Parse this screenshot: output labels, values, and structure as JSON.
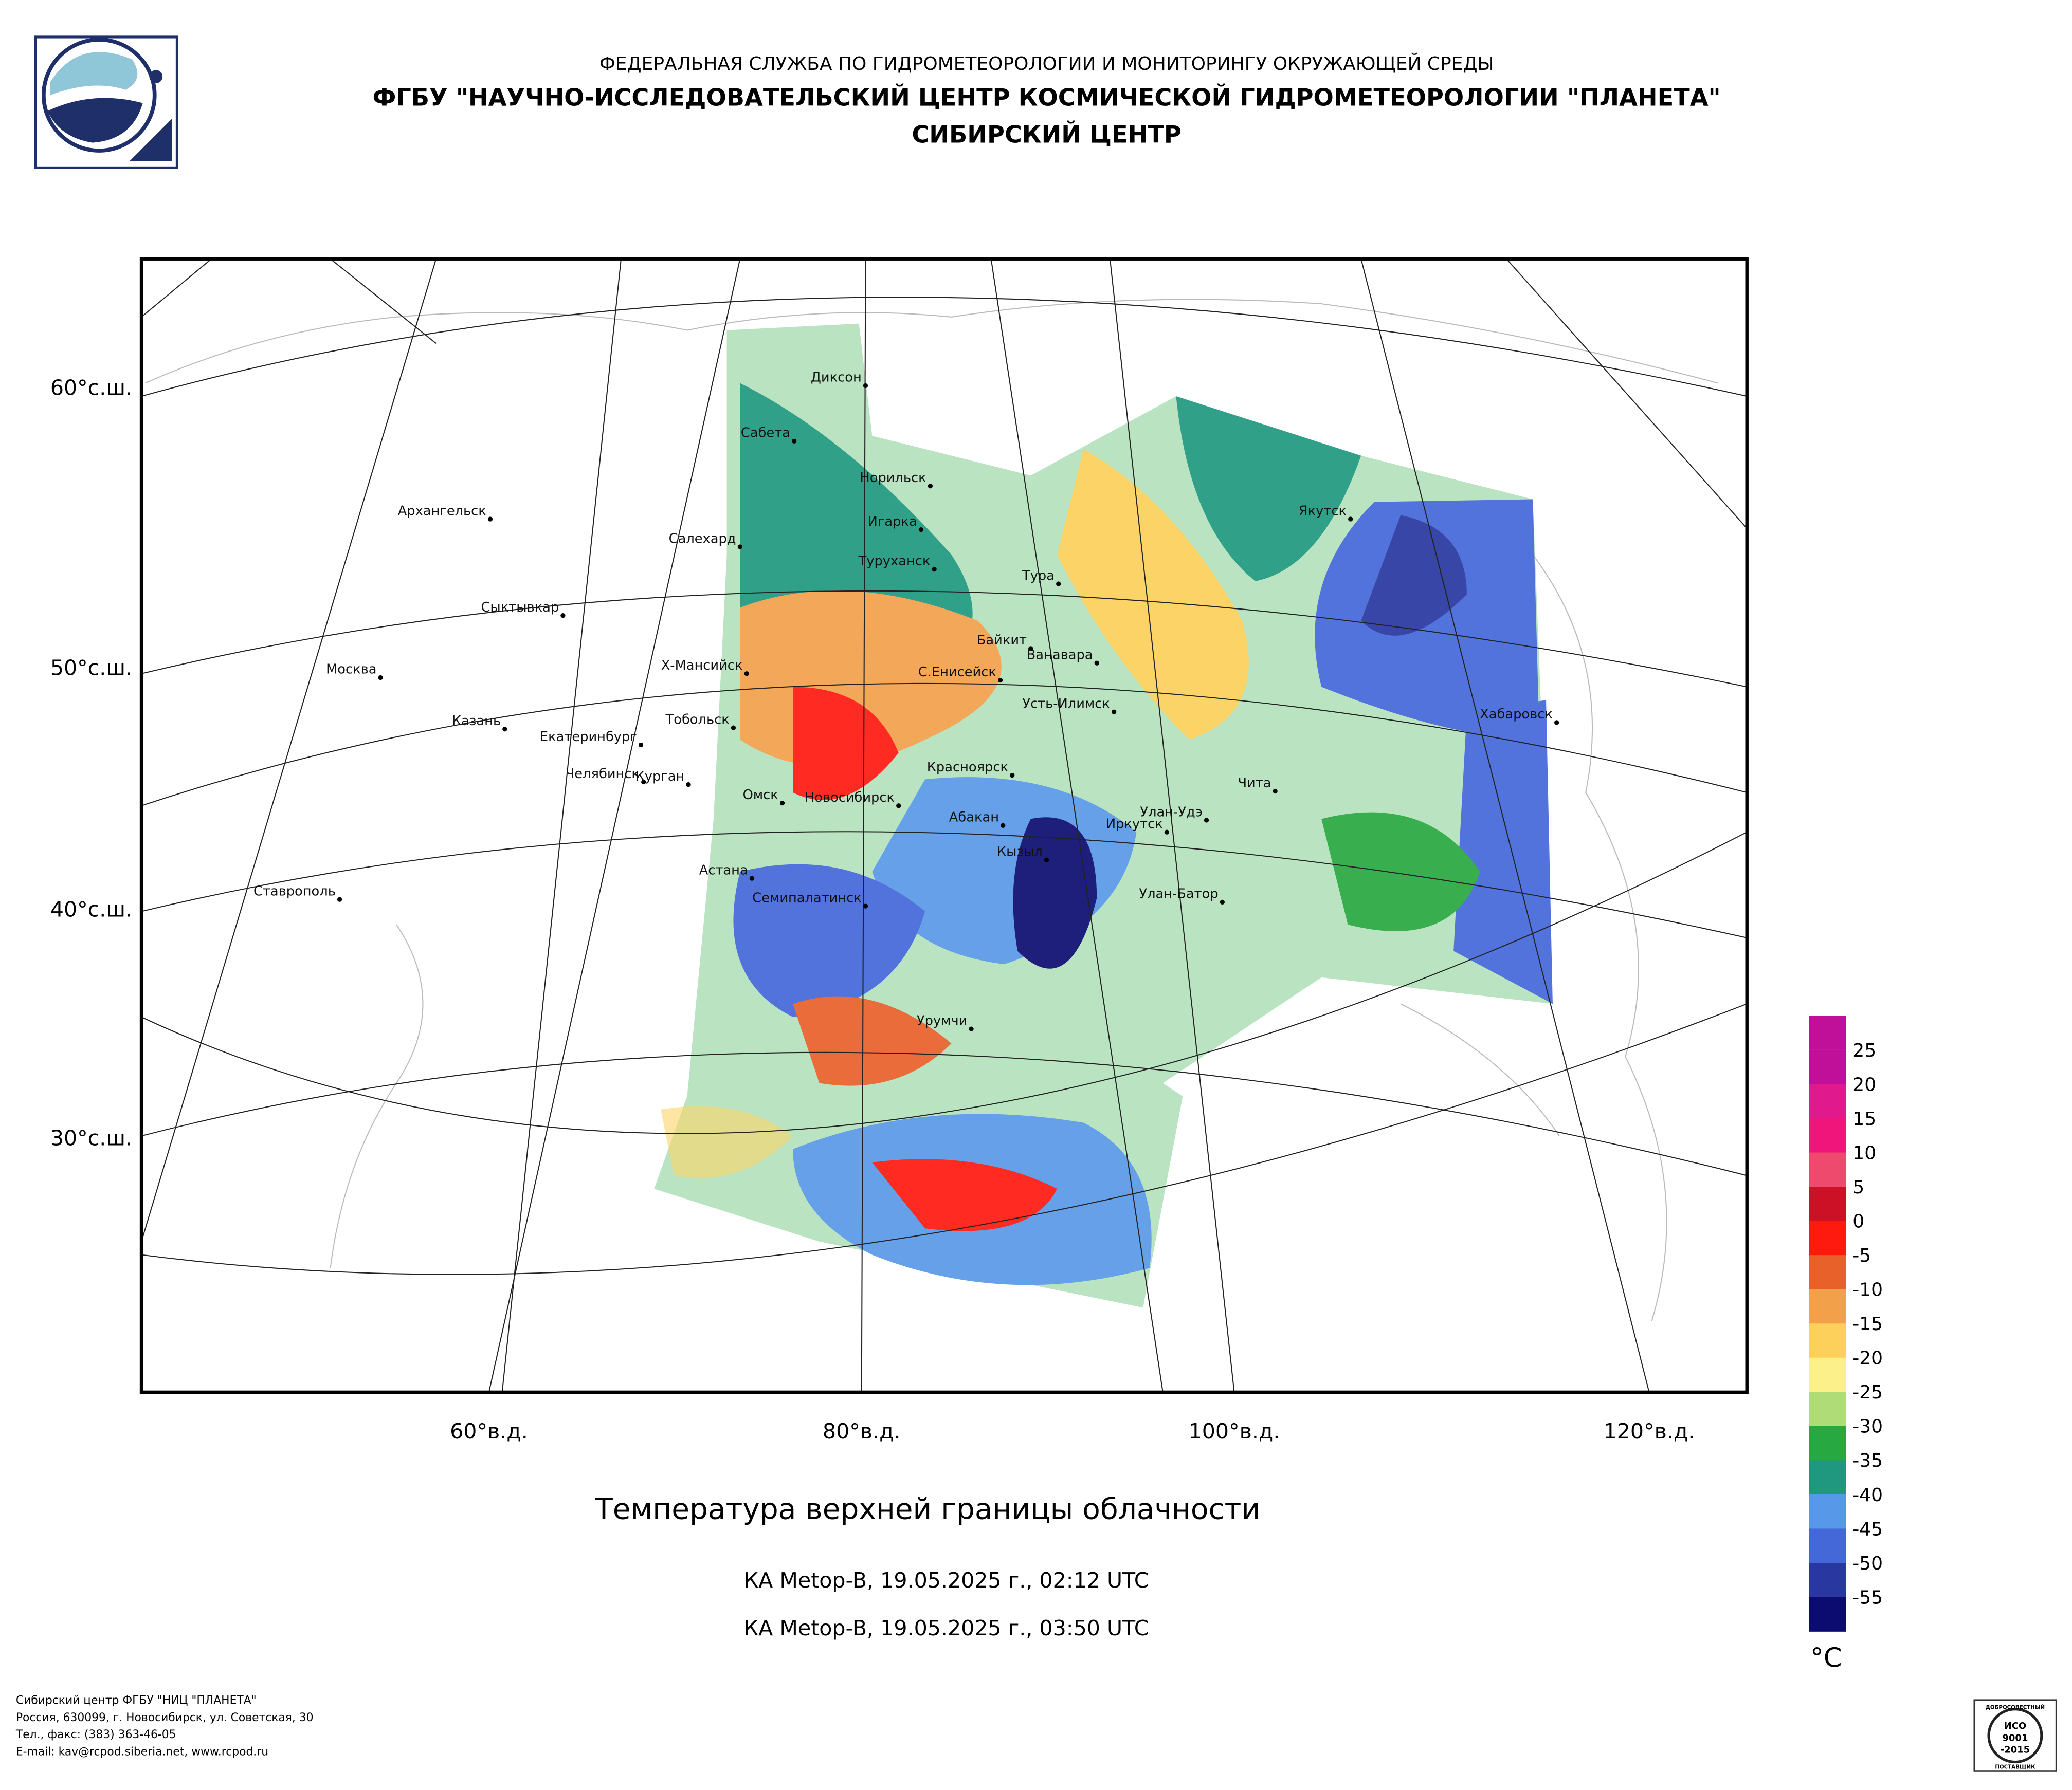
{
  "header": {
    "line1": "ФЕДЕРАЛЬНАЯ СЛУЖБА ПО ГИДРОМЕТЕОРОЛОГИИ И МОНИТОРИНГУ ОКРУЖАЮЩЕЙ СРЕДЫ",
    "line2": "ФГБУ \"НАУЧНО-ИССЛЕДОВАТЕЛЬСКИЙ ЦЕНТР КОСМИЧЕСКОЙ ГИДРОМЕТЕОРОЛОГИИ \"ПЛАНЕТА\"",
    "line3": "СИБИРСКИЙ ЦЕНТР"
  },
  "map": {
    "lat_labels": [
      "60°с.ш.",
      "50°с.ш.",
      "40°с.ш.",
      "30°с.ш."
    ],
    "lon_labels": [
      "60°в.д.",
      "80°в.д.",
      "100°в.д.",
      "120°в.д."
    ],
    "cities": [
      "Диксон",
      "Сабета",
      "Норильск",
      "Архангельск",
      "Салехард",
      "Игарка",
      "Туруханск",
      "Тура",
      "Сыктывкар",
      "Байкит",
      "Ванавара",
      "Х-Мансийск",
      "Москва",
      "С.Енисейск",
      "Усть-Илимск",
      "Казань",
      "Тобольск",
      "Хабаровск",
      "Екатеринбург",
      "Челябинск",
      "Курган",
      "Чита",
      "Омск",
      "Новосибирск",
      "Красноярск",
      "Абакан",
      "Улан-Удэ",
      "Иркутск",
      "Кызыл",
      "Астана",
      "Семипалатинск",
      "Улан-Батор",
      "Ставрополь",
      "Урумчи",
      "Якутск"
    ]
  },
  "title": "Температура верхней границы облачности",
  "subtitles": [
    "КА Metop-B, 19.05.2025 г., 02:12 UTC",
    "КА Metop-B, 19.05.2025 г., 03:50 UTC"
  ],
  "legend": {
    "unit": "°C",
    "ticks": [
      25,
      20,
      15,
      10,
      5,
      0,
      -5,
      -10,
      -15,
      -20,
      -25,
      -30,
      -35,
      -40,
      -45,
      -50,
      -55
    ],
    "colors": [
      "#c0109a",
      "#e01a8c",
      "#f0157a",
      "#ee4a6e",
      "#cc1025",
      "#ff1a10",
      "#e8602a",
      "#f2a04a",
      "#fcd05a",
      "#fcf08a",
      "#b0dc78",
      "#28a840",
      "#209880",
      "#5898e8",
      "#4468d8",
      "#2838a0",
      "#0c0c70"
    ]
  },
  "footer": [
    "Сибирский центр ФГБУ \"НИЦ \"ПЛАНЕТА\"",
    "Россия, 630099, г. Новосибирск, ул. Советская, 30",
    "Тел., факс: (383) 363-46-05",
    "E-mail: kav@rcpod.siberia.net, www.rcpod.ru"
  ],
  "badge": [
    "ДОБРОСОВЕСТНЫЙ",
    "ИСО",
    "9001",
    "-2015",
    "ПОСТАВЩИК"
  ]
}
